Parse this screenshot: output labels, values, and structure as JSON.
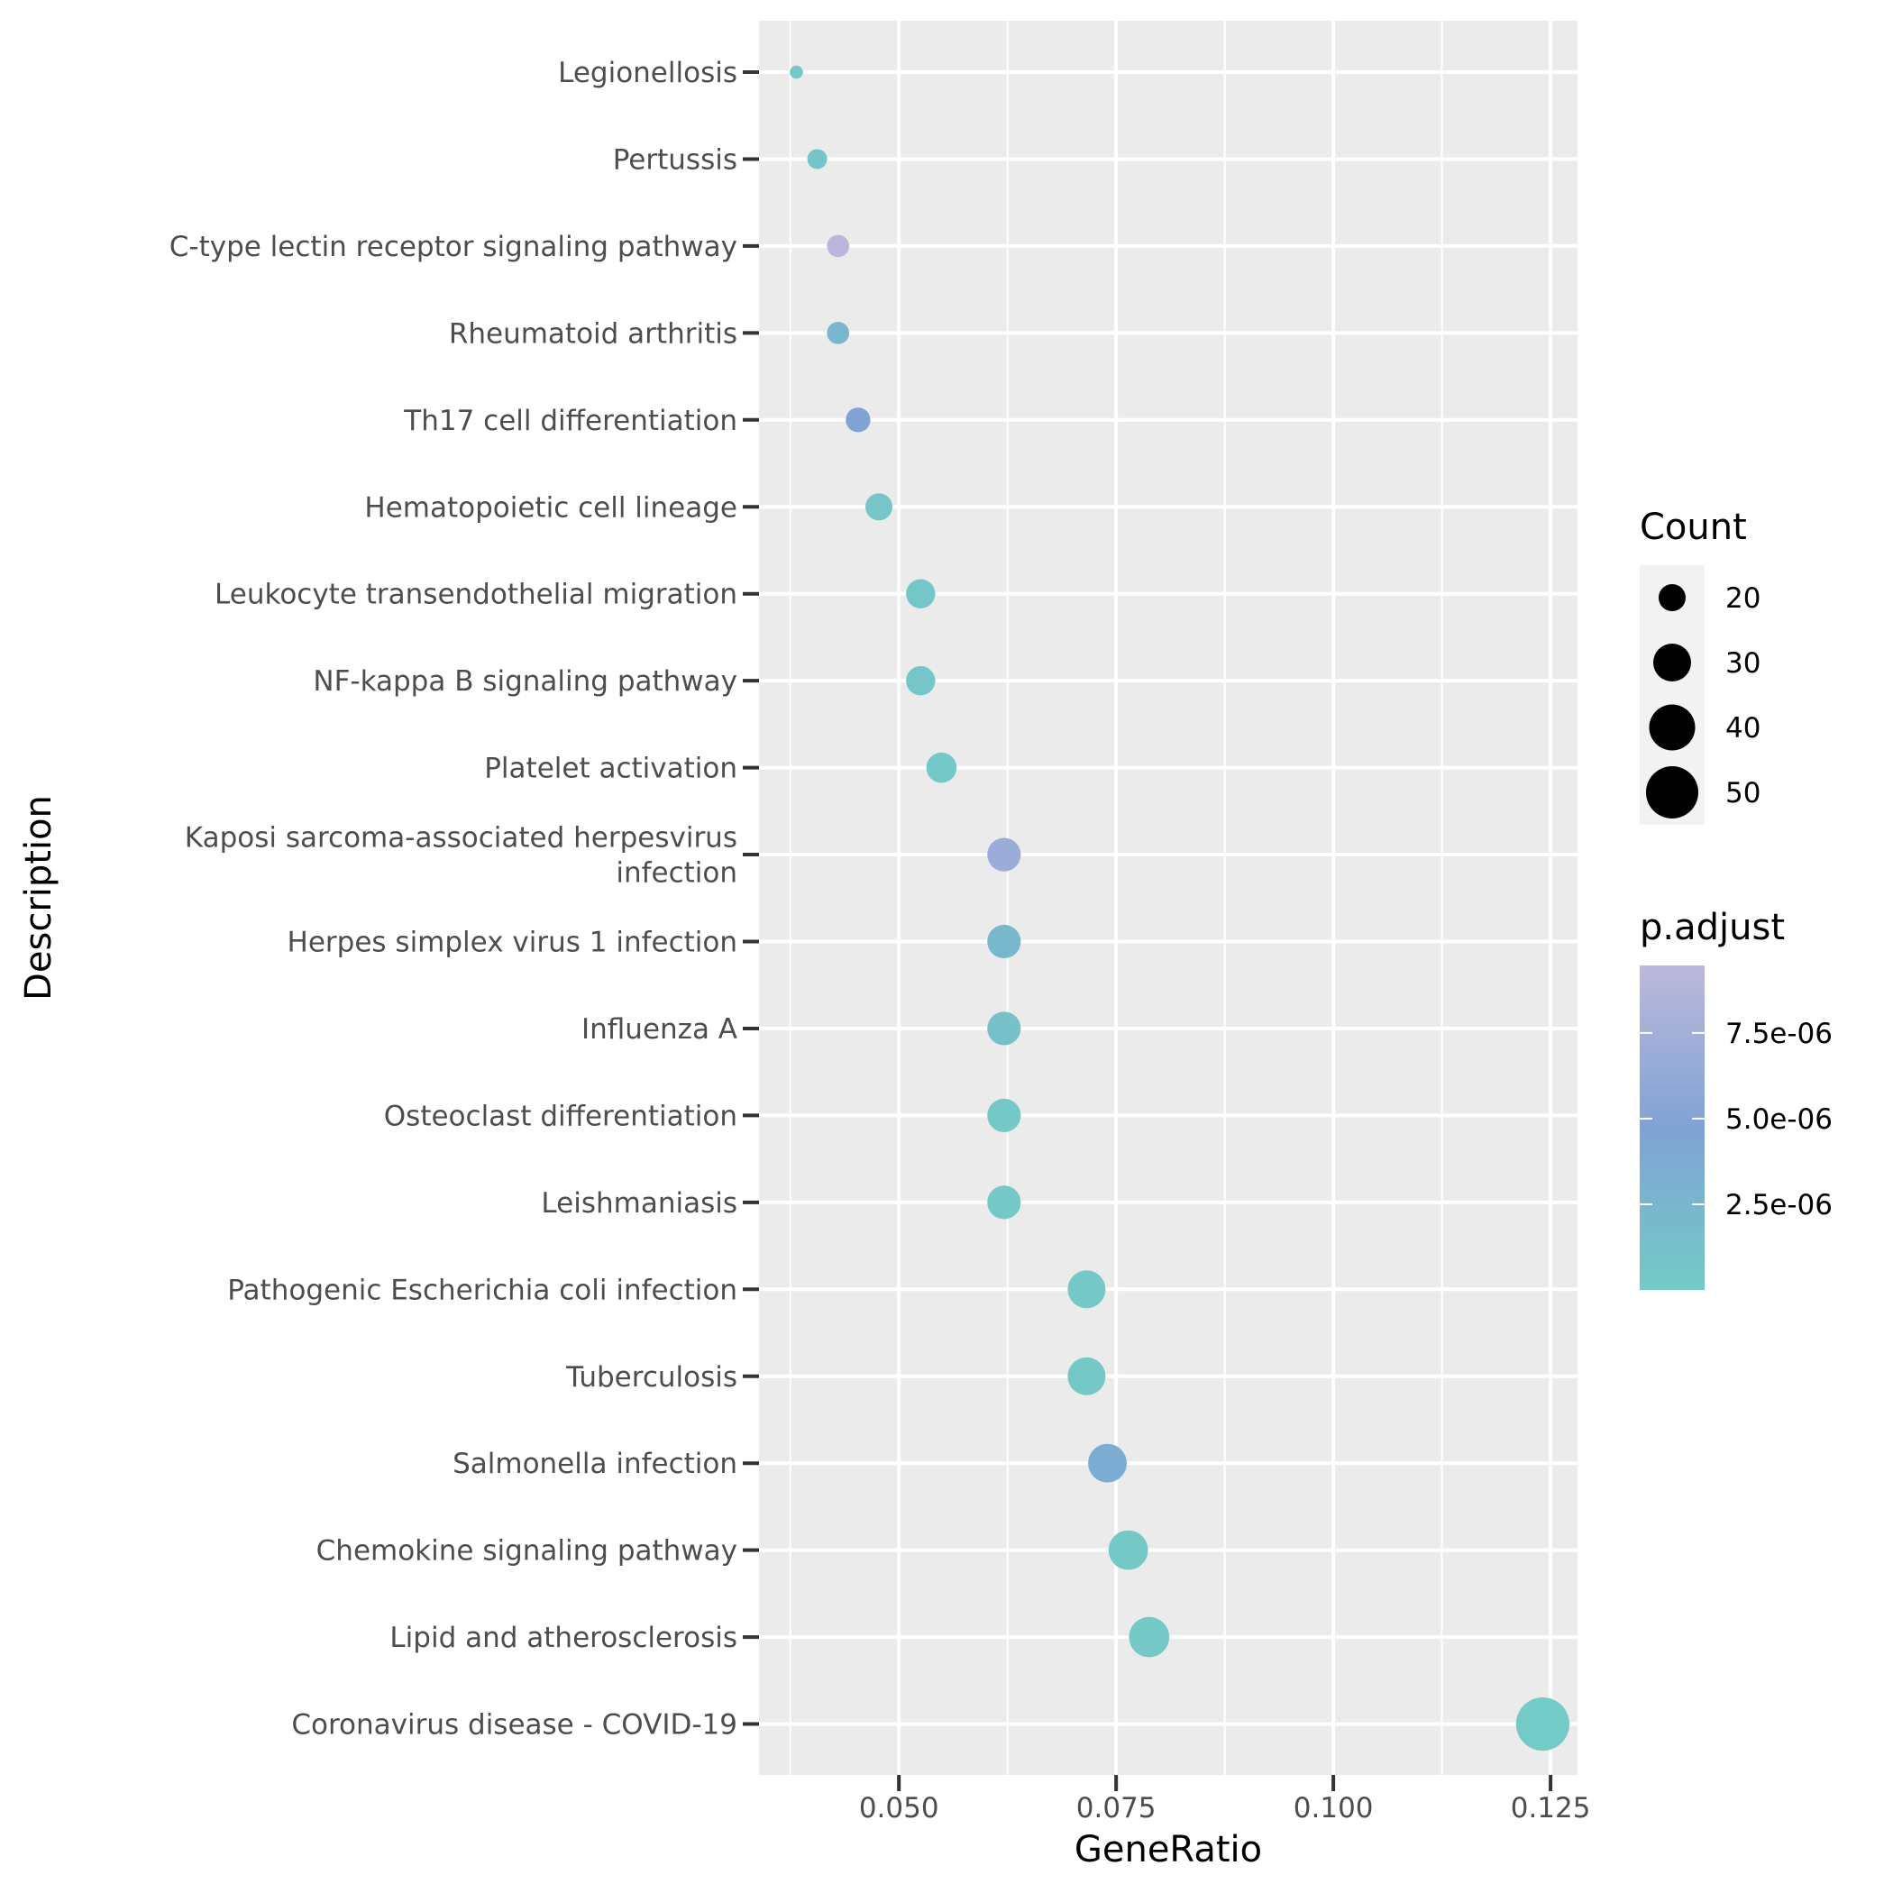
{
  "chart_data": {
    "type": "scatter",
    "subtype": "dotplot",
    "title": "",
    "xlabel": "GeneRatio",
    "ylabel": "Description",
    "xlim": [
      0.0339,
      0.1281
    ],
    "x_ticks": [
      0.05,
      0.075,
      0.1,
      0.125
    ],
    "x_tick_labels": [
      "0.050",
      "0.075",
      "0.100",
      "0.125"
    ],
    "grid": true,
    "categories": [
      "Legionellosis",
      "Pertussis",
      "C-type lectin receptor signaling pathway",
      "Rheumatoid arthritis",
      "Th17 cell differentiation",
      "Hematopoietic cell lineage",
      "Leukocyte transendothelial migration",
      "NF-kappa B signaling pathway",
      "Platelet activation",
      "Kaposi sarcoma-associated herpesvirus\ninfection",
      "Herpes simplex virus 1 infection",
      "Influenza A",
      "Osteoclast differentiation",
      "Leishmaniasis",
      "Pathogenic Escherichia coli infection",
      "Tuberculosis",
      "Salmonella infection",
      "Chemokine signaling pathway",
      "Lipid and atherosclerosis",
      "Coronavirus disease - COVID-19"
    ],
    "points": [
      {
        "description": "Legionellosis",
        "gene_ratio": 0.0382,
        "count": 16,
        "p_adjust": 4e-07
      },
      {
        "description": "Pertussis",
        "gene_ratio": 0.0406,
        "count": 17,
        "p_adjust": 9e-07
      },
      {
        "description": "C-type lectin receptor signaling pathway",
        "gene_ratio": 0.043,
        "count": 18,
        "p_adjust": 9.3e-06
      },
      {
        "description": "Rheumatoid arthritis",
        "gene_ratio": 0.043,
        "count": 18,
        "p_adjust": 2.4e-06
      },
      {
        "description": "Th17 cell differentiation",
        "gene_ratio": 0.0453,
        "count": 19,
        "p_adjust": 4.6e-06
      },
      {
        "description": "Hematopoietic cell lineage",
        "gene_ratio": 0.0477,
        "count": 20,
        "p_adjust": 6e-07
      },
      {
        "description": "Leukocyte transendothelial migration",
        "gene_ratio": 0.0525,
        "count": 22,
        "p_adjust": 5e-07
      },
      {
        "description": "NF-kappa B signaling pathway",
        "gene_ratio": 0.0525,
        "count": 22,
        "p_adjust": 5e-07
      },
      {
        "description": "Platelet activation",
        "gene_ratio": 0.0549,
        "count": 23,
        "p_adjust": 3e-07
      },
      {
        "description": "Kaposi sarcoma-associated herpesvirus infection",
        "gene_ratio": 0.0621,
        "count": 26,
        "p_adjust": 6.8e-06
      },
      {
        "description": "Herpes simplex virus 1 infection",
        "gene_ratio": 0.0621,
        "count": 26,
        "p_adjust": 2.3e-06
      },
      {
        "description": "Influenza A",
        "gene_ratio": 0.0621,
        "count": 26,
        "p_adjust": 1.1e-06
      },
      {
        "description": "Osteoclast differentiation",
        "gene_ratio": 0.0621,
        "count": 26,
        "p_adjust": 2e-07
      },
      {
        "description": "Leishmaniasis",
        "gene_ratio": 0.0621,
        "count": 26,
        "p_adjust": 2e-07
      },
      {
        "description": "Pathogenic Escherichia coli infection",
        "gene_ratio": 0.0716,
        "count": 30,
        "p_adjust": 1e-07
      },
      {
        "description": "Tuberculosis",
        "gene_ratio": 0.0716,
        "count": 30,
        "p_adjust": 1e-07
      },
      {
        "description": "Salmonella infection",
        "gene_ratio": 0.074,
        "count": 31,
        "p_adjust": 3.6e-06
      },
      {
        "description": "Chemokine signaling pathway",
        "gene_ratio": 0.0764,
        "count": 32,
        "p_adjust": 1e-07
      },
      {
        "description": "Lipid and atherosclerosis",
        "gene_ratio": 0.0788,
        "count": 33,
        "p_adjust": 1e-07
      },
      {
        "description": "Coronavirus disease - COVID-19",
        "gene_ratio": 0.1241,
        "count": 52,
        "p_adjust": 1e-08
      }
    ],
    "legend": {
      "placement": "right",
      "size": {
        "title": "Count",
        "breaks": [
          20,
          30,
          40,
          50
        ],
        "labels": [
          "20",
          "30",
          "40",
          "50"
        ]
      },
      "color": {
        "title": "p.adjust",
        "range": [
          0,
          9.47e-06
        ],
        "breaks": [
          2.5e-06,
          5e-06,
          7.5e-06
        ],
        "labels": [
          "2.5e-06",
          "5.0e-06",
          "7.5e-06"
        ],
        "low_color": "#74CAC7",
        "mid_color": "#7FA3D4",
        "high_color": "#BDB8DC"
      }
    },
    "colors": {
      "panel_background": "#EBEBEB",
      "grid": "#FFFFFF",
      "axis_text": "#4D4D4D",
      "tick": "#333333",
      "legend_key_background": "#F2F2F2"
    }
  }
}
